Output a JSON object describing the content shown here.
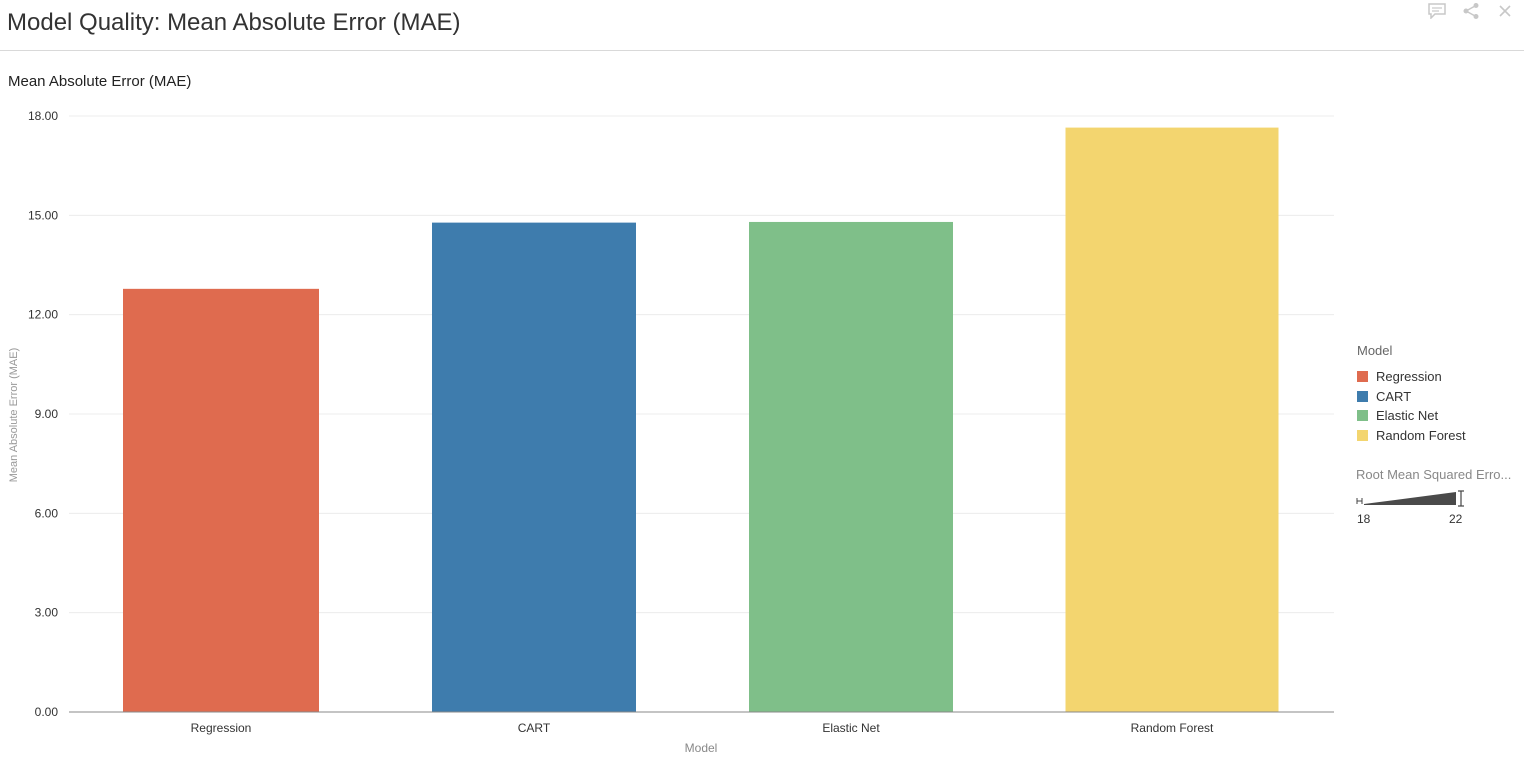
{
  "page": {
    "title": "Model Quality: Mean Absolute Error (MAE)",
    "icons": [
      "comment-icon",
      "share-icon",
      "close-icon"
    ]
  },
  "legend": {
    "title": "Model",
    "items": [
      {
        "label": "Regression",
        "color": "#df6b4f"
      },
      {
        "label": "CART",
        "color": "#3e7cad"
      },
      {
        "label": "Elastic Net",
        "color": "#7fbf89"
      },
      {
        "label": "Random Forest",
        "color": "#f3d56f"
      }
    ]
  },
  "size_legend": {
    "title": "Root Mean Squared Erro...",
    "min_label": "18",
    "max_label": "22"
  },
  "chart_data": {
    "type": "bar",
    "title": "Mean Absolute Error (MAE)",
    "xlabel": "Model",
    "ylabel": "Mean Absolute Error (MAE)",
    "categories": [
      "Regression",
      "CART",
      "Elastic Net",
      "Random Forest"
    ],
    "values": [
      12.78,
      14.78,
      14.8,
      17.65
    ],
    "colors": [
      "#df6b4f",
      "#3e7cad",
      "#7fbf89",
      "#f3d56f"
    ],
    "ylim": [
      0,
      18
    ],
    "yticks": [
      "0.00",
      "3.00",
      "6.00",
      "9.00",
      "12.00",
      "15.00",
      "18.00"
    ],
    "grid": true,
    "legend_position": "right"
  }
}
